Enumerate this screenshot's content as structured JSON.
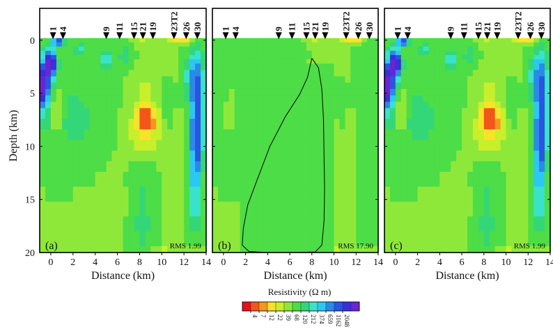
{
  "chart_data": [
    {
      "type": "heatmap",
      "panel_label": "(a)",
      "rms_label": "RMS 1.99",
      "xlabel": "Distance (km)",
      "ylabel": "Depth (km)",
      "xlim": [
        -1,
        14
      ],
      "ylim": [
        -3,
        20
      ],
      "xticks": [
        "0",
        "2",
        "4",
        "6",
        "8",
        "10",
        "12",
        "14"
      ],
      "yticks": [
        "0",
        "5",
        "10",
        "15",
        "20"
      ],
      "has_outline": false
    },
    {
      "type": "heatmap",
      "panel_label": "(b)",
      "rms_label": "RMS 17.90",
      "xlabel": "Distance (km)",
      "xlim": [
        -1,
        14
      ],
      "ylim": [
        -3,
        20
      ],
      "xticks": [
        "0",
        "2",
        "4",
        "6",
        "8",
        "10",
        "12",
        "14"
      ],
      "has_outline": true,
      "outline": [
        [
          8,
          1.7
        ],
        [
          8.6,
          2.6
        ],
        [
          8.9,
          4.6
        ],
        [
          9.05,
          7.5
        ],
        [
          9.1,
          11
        ],
        [
          9.15,
          14
        ],
        [
          9.1,
          17
        ],
        [
          8.9,
          19.3
        ],
        [
          8.3,
          19.95
        ],
        [
          6.5,
          20
        ],
        [
          4,
          20
        ],
        [
          2.3,
          19.9
        ],
        [
          1.7,
          19.3
        ],
        [
          1.8,
          17.7
        ],
        [
          2.2,
          15.5
        ],
        [
          3.1,
          13
        ],
        [
          4.2,
          10
        ],
        [
          5.6,
          7.2
        ],
        [
          6.9,
          5.1
        ],
        [
          7.6,
          3.5
        ],
        [
          8,
          1.7
        ]
      ]
    },
    {
      "type": "heatmap",
      "panel_label": "(c)",
      "rms_label": "RMS 1.99",
      "xlabel": "Distance (km)",
      "xlim": [
        -1,
        14
      ],
      "ylim": [
        -3,
        20
      ],
      "xticks": [
        "0",
        "2",
        "4",
        "6",
        "8",
        "10",
        "12",
        "14"
      ],
      "has_outline": false
    }
  ],
  "stations": [
    {
      "label": "1",
      "x": 0.2
    },
    {
      "label": "4",
      "x": 1.1
    },
    {
      "label": "9",
      "x": 5.0
    },
    {
      "label": "11",
      "x": 6.2
    },
    {
      "label": "15",
      "x": 7.5
    },
    {
      "label": "21",
      "x": 8.3
    },
    {
      "label": "19",
      "x": 9.2
    },
    {
      "label": "23T2",
      "x": 11.1
    },
    {
      "label": "26",
      "x": 12.2
    },
    {
      "label": "30",
      "x": 13.2
    }
  ],
  "colorbar": {
    "title": "Resistivity (Ω m)",
    "colors": [
      "#e8101a",
      "#f2561b",
      "#f7951f",
      "#fbe22a",
      "#c9ef2a",
      "#8ee83a",
      "#4ddd46",
      "#33d778",
      "#38e3c9",
      "#2cc8f2",
      "#2a8ae8",
      "#2a55e0",
      "#3a2fd8",
      "#6a24d4"
    ],
    "labels": [
      "4",
      "7",
      "12",
      "22",
      "39",
      "68",
      "120",
      "212",
      "374",
      "659",
      "1162",
      "2048"
    ]
  }
}
